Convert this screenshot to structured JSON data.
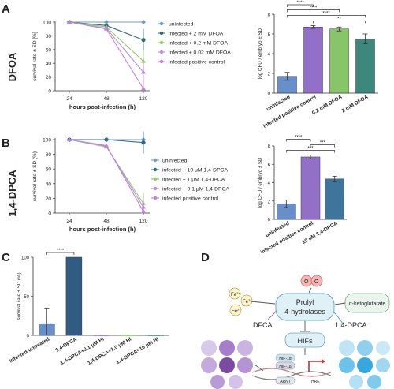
{
  "panels": {
    "A": {
      "letter": "A",
      "row_label": "DFOA"
    },
    "B": {
      "letter": "B",
      "row_label": "1,4-DPCA"
    },
    "C": {
      "letter": "C"
    },
    "D": {
      "letter": "D"
    }
  },
  "chart_data": [
    {
      "id": "A-line",
      "type": "line",
      "xlabel": "hours post-infection (h)",
      "ylabel": "survival rate ± SD  [%]",
      "categories": [
        "24",
        "48",
        "120"
      ],
      "ylim": [
        0,
        100
      ],
      "yticks": [
        0,
        20,
        40,
        60,
        80,
        100
      ],
      "series": [
        {
          "name": "uninfected",
          "color": "#6f9bd0",
          "marker": "diamond",
          "values": [
            100,
            100,
            100
          ]
        },
        {
          "name": "infected + 2 mM DFOA",
          "color": "#2e6d73",
          "marker": "circle",
          "values": [
            100,
            95,
            74
          ]
        },
        {
          "name": "infected + 0.2 mM DFOA",
          "color": "#8fcf6a",
          "marker": "triangle",
          "values": [
            100,
            93,
            43
          ]
        },
        {
          "name": "infected + 0.02 mM DFOA",
          "color": "#b790d6",
          "marker": "triangle",
          "values": [
            100,
            91,
            27
          ]
        },
        {
          "name": "infected positive control",
          "color": "#c77de0",
          "marker": "triangle",
          "values": [
            100,
            90,
            3
          ]
        }
      ]
    },
    {
      "id": "A-bar",
      "type": "bar",
      "ylabel": "log CFU / embryo ± SD",
      "categories": [
        "uninfected",
        "infected positive control",
        "0.2 mM DFOA",
        "2 mM DFOA"
      ],
      "values": [
        1.7,
        6.7,
        6.5,
        5.5
      ],
      "errors": [
        0.4,
        0.15,
        0.2,
        0.5
      ],
      "colors": [
        "#5b86c5",
        "#8a64c4",
        "#7ec05c",
        "#2e7d73"
      ],
      "ylim": [
        0,
        8
      ],
      "yticks": [
        0,
        2,
        4,
        6,
        8
      ],
      "significance": [
        {
          "from": 0,
          "to": 1,
          "label": "****"
        },
        {
          "from": 0,
          "to": 2,
          "label": "****"
        },
        {
          "from": 0,
          "to": 3,
          "label": "****"
        },
        {
          "from": 1,
          "to": 3,
          "label": "**"
        }
      ]
    },
    {
      "id": "B-line",
      "type": "line",
      "xlabel": "hours post-infection (h)",
      "ylabel": "survival rate ± SD (%)",
      "categories": [
        "24",
        "48",
        "120"
      ],
      "ylim": [
        0,
        100
      ],
      "yticks": [
        0,
        20,
        40,
        60,
        80,
        100
      ],
      "series": [
        {
          "name": "uninfected",
          "color": "#6f9bd0",
          "marker": "diamond",
          "values": [
            100,
            100,
            100
          ]
        },
        {
          "name": "infected + 10 μM 1,4-DPCA",
          "color": "#2e6d8a",
          "marker": "circle",
          "values": [
            100,
            100,
            96
          ]
        },
        {
          "name": "infected + 1 μM 1,4-DPCA",
          "color": "#8fcf6a",
          "marker": "triangle",
          "values": [
            100,
            90,
            13
          ]
        },
        {
          "name": "infected + 0.1 μM 1,4-DPCA",
          "color": "#b790d6",
          "marker": "triangle",
          "values": [
            100,
            91,
            8
          ]
        },
        {
          "name": "infected positive control",
          "color": "#c77de0",
          "marker": "triangle",
          "values": [
            100,
            92,
            2
          ]
        }
      ]
    },
    {
      "id": "B-bar",
      "type": "bar",
      "ylabel": "log CFU / embryo ± SD",
      "categories": [
        "uninfected",
        "infected positive control",
        "10 μM 1,4-DPCA"
      ],
      "values": [
        1.7,
        6.8,
        4.4
      ],
      "errors": [
        0.4,
        0.2,
        0.3
      ],
      "colors": [
        "#5b86c5",
        "#8a64c4",
        "#2f6a95"
      ],
      "ylim": [
        0,
        8
      ],
      "yticks": [
        0,
        2,
        4,
        6,
        8
      ],
      "significance": [
        {
          "from": 0,
          "to": 1,
          "label": "****"
        },
        {
          "from": 1,
          "to": 2,
          "label": "***"
        },
        {
          "from": 0,
          "to": 2,
          "label": "***"
        }
      ]
    },
    {
      "id": "C-bar",
      "type": "bar",
      "ylabel": "survival rate ± SD  (%)",
      "categories": [
        "infected-untreated",
        "1,4-DPCA",
        "1,4-DPCA+0.1 μM HI",
        "1,4-DPCA+1.0 μM HI",
        "1,4-DPCA+10 μM HI"
      ],
      "values": [
        15,
        100,
        0,
        0,
        0
      ],
      "errors": [
        20,
        0,
        0,
        0,
        0
      ],
      "colors": [
        "#5b86c5",
        "#1f4e79",
        "#8a64c4",
        "#7ec05c",
        "#2e7d73"
      ],
      "ylim": [
        0,
        100
      ],
      "yticks": [
        0,
        50,
        100
      ],
      "significance": [
        {
          "from": 0,
          "to": 1,
          "label": "****"
        }
      ]
    }
  ],
  "diagram": {
    "center": "Prolyl\n4-hydrolases",
    "o2": "O",
    "akg": "α-ketoglutarate",
    "fe": "Fe",
    "fe_sup": "2+",
    "dfca": "DFCA",
    "dpca": "1,4-DPCA",
    "hifs": "HIFs",
    "hif1a": "HIF-1α",
    "hif1b": "HIF-1β",
    "arnt": "ARNT",
    "hre": "HRE"
  }
}
